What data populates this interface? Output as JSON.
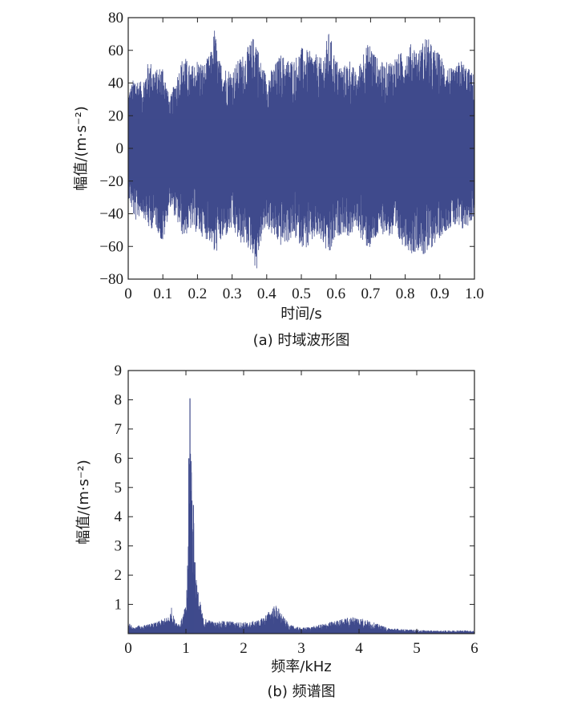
{
  "chart_data": [
    {
      "type": "line",
      "subtitle": "(a) 时域波形图",
      "xlabel": "时间/s",
      "ylabel": "幅值/(m·s⁻²)",
      "xlim": [
        0,
        1.0
      ],
      "ylim": [
        -80,
        80
      ],
      "xticks": [
        "0",
        "0.1",
        "0.2",
        "0.3",
        "0.4",
        "0.5",
        "0.6",
        "0.7",
        "0.8",
        "0.9",
        "1.0"
      ],
      "yticks": [
        "80",
        "60",
        "40",
        "20",
        "0",
        "−20",
        "−40",
        "−60",
        "−80"
      ],
      "grid": false,
      "series_color": "#3f4a8c",
      "series": [
        {
          "x": [
            0.0,
            0.02,
            0.04,
            0.06,
            0.08,
            0.1,
            0.12,
            0.14,
            0.16,
            0.18,
            0.2,
            0.22,
            0.24,
            0.25,
            0.26,
            0.28,
            0.3,
            0.32,
            0.34,
            0.36,
            0.37,
            0.38,
            0.4,
            0.42,
            0.44,
            0.46,
            0.48,
            0.5,
            0.52,
            0.54,
            0.56,
            0.58,
            0.6,
            0.62,
            0.64,
            0.66,
            0.68,
            0.7,
            0.72,
            0.74,
            0.76,
            0.78,
            0.8,
            0.82,
            0.84,
            0.86,
            0.88,
            0.9,
            0.92,
            0.94,
            0.96,
            0.98,
            1.0
          ],
          "upper": [
            35,
            45,
            40,
            55,
            48,
            52,
            30,
            45,
            58,
            50,
            55,
            52,
            60,
            75,
            55,
            50,
            48,
            55,
            60,
            68,
            70,
            55,
            45,
            50,
            58,
            55,
            55,
            62,
            60,
            58,
            55,
            72,
            55,
            50,
            55,
            45,
            62,
            65,
            55,
            52,
            55,
            58,
            60,
            65,
            60,
            70,
            62,
            58,
            52,
            48,
            55,
            50,
            45
          ],
          "lower": [
            -30,
            -45,
            -40,
            -50,
            -48,
            -60,
            -35,
            -45,
            -55,
            -50,
            -52,
            -55,
            -58,
            -68,
            -60,
            -55,
            -50,
            -58,
            -60,
            -65,
            -78,
            -60,
            -48,
            -55,
            -60,
            -58,
            -55,
            -60,
            -62,
            -55,
            -58,
            -68,
            -55,
            -52,
            -55,
            -48,
            -60,
            -62,
            -55,
            -52,
            -55,
            -58,
            -60,
            -65,
            -62,
            -68,
            -60,
            -55,
            -50,
            -48,
            -52,
            -48,
            -42
          ]
        }
      ]
    },
    {
      "type": "line",
      "subtitle": "(b) 频谱图",
      "xlabel": "频率/kHz",
      "ylabel": "幅值/(m·s⁻²)",
      "xlim": [
        0,
        6
      ],
      "ylim": [
        0,
        9
      ],
      "xticks": [
        "0",
        "1",
        "2",
        "3",
        "4",
        "5",
        "6"
      ],
      "yticks": [
        "9",
        "8",
        "7",
        "6",
        "5",
        "4",
        "3",
        "2",
        "1"
      ],
      "grid": false,
      "series_color": "#3f4a8c",
      "series": [
        {
          "x": [
            0.0,
            0.1,
            0.2,
            0.3,
            0.4,
            0.5,
            0.6,
            0.7,
            0.75,
            0.8,
            0.9,
            1.0,
            1.03,
            1.05,
            1.07,
            1.1,
            1.13,
            1.15,
            1.2,
            1.3,
            1.5,
            1.7,
            1.9,
            2.1,
            2.3,
            2.45,
            2.55,
            2.6,
            2.7,
            2.8,
            3.0,
            3.2,
            3.4,
            3.6,
            3.8,
            3.95,
            4.1,
            4.3,
            4.5,
            4.8,
            5.1,
            5.4,
            5.7,
            6.0
          ],
          "y": [
            0.4,
            0.2,
            0.3,
            0.3,
            0.35,
            0.4,
            0.5,
            0.6,
            0.9,
            0.5,
            0.35,
            1.0,
            2.5,
            4.8,
            8.05,
            6.0,
            4.4,
            3.2,
            1.6,
            0.55,
            0.4,
            0.45,
            0.4,
            0.4,
            0.5,
            0.8,
            1.0,
            0.9,
            0.55,
            0.3,
            0.2,
            0.25,
            0.35,
            0.45,
            0.55,
            0.6,
            0.5,
            0.35,
            0.2,
            0.15,
            0.12,
            0.1,
            0.12,
            0.1
          ]
        }
      ]
    }
  ]
}
